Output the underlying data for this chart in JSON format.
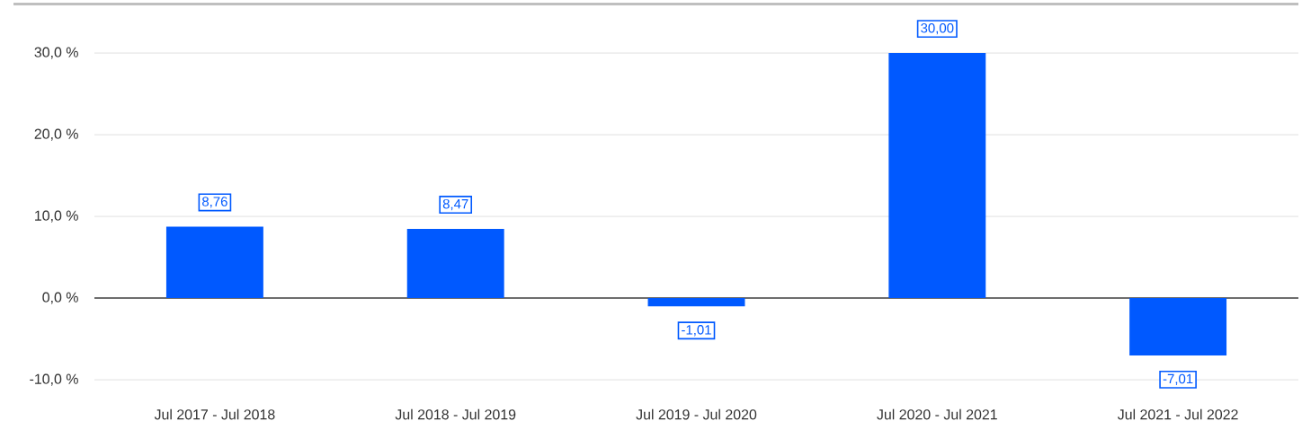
{
  "chart_data": {
    "type": "bar",
    "categories": [
      "Jul 2017 - Jul 2018",
      "Jul 2018 - Jul 2019",
      "Jul 2019 - Jul 2020",
      "Jul 2020 - Jul 2021",
      "Jul 2021 - Jul 2022"
    ],
    "values": [
      8.76,
      8.47,
      -1.01,
      30.0,
      -7.01
    ],
    "value_labels": [
      "8,76",
      "8,47",
      "-1,01",
      "30,00",
      "-7,01"
    ],
    "color": "#0059ff",
    "ylim": [
      -11,
      36
    ],
    "yticks": [
      {
        "value": -10,
        "label": "-10,0 %"
      },
      {
        "value": 0,
        "label": "0,0 %"
      },
      {
        "value": 10,
        "label": "10,0 %"
      },
      {
        "value": 20,
        "label": "20,0 %"
      },
      {
        "value": 30,
        "label": "30,0 %"
      }
    ],
    "grid": "y"
  }
}
